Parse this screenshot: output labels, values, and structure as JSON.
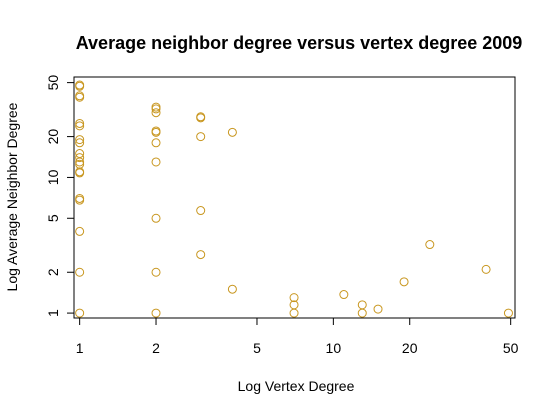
{
  "chart_data": {
    "type": "scatter",
    "title": "Average neighbor degree versus vertex degree 2009",
    "xlabel": "Log Vertex Degree",
    "ylabel": "Log Average Neighbor Degree",
    "x_scale": "log",
    "y_scale": "log",
    "xlim": [
      0.95,
      52
    ],
    "ylim": [
      0.92,
      55
    ],
    "x_ticks": [
      1,
      2,
      5,
      10,
      20,
      50
    ],
    "y_ticks": [
      1,
      2,
      5,
      10,
      20,
      50
    ],
    "grid": false,
    "marker": "open-circle",
    "point_color": "#c8961e",
    "points": [
      {
        "x": 1,
        "y": 48
      },
      {
        "x": 1,
        "y": 47
      },
      {
        "x": 1,
        "y": 40
      },
      {
        "x": 1,
        "y": 39
      },
      {
        "x": 1,
        "y": 25
      },
      {
        "x": 1,
        "y": 24
      },
      {
        "x": 1,
        "y": 19
      },
      {
        "x": 1,
        "y": 18
      },
      {
        "x": 1,
        "y": 15
      },
      {
        "x": 1,
        "y": 14
      },
      {
        "x": 1,
        "y": 13
      },
      {
        "x": 1,
        "y": 12.5
      },
      {
        "x": 1,
        "y": 11
      },
      {
        "x": 1,
        "y": 10.8
      },
      {
        "x": 1,
        "y": 7
      },
      {
        "x": 1,
        "y": 6.8
      },
      {
        "x": 1,
        "y": 4
      },
      {
        "x": 1,
        "y": 2
      },
      {
        "x": 1,
        "y": 1
      },
      {
        "x": 2,
        "y": 33
      },
      {
        "x": 2,
        "y": 32
      },
      {
        "x": 2,
        "y": 30
      },
      {
        "x": 2,
        "y": 22
      },
      {
        "x": 2,
        "y": 21.5
      },
      {
        "x": 2,
        "y": 18
      },
      {
        "x": 2,
        "y": 13
      },
      {
        "x": 2,
        "y": 5
      },
      {
        "x": 2,
        "y": 2
      },
      {
        "x": 2,
        "y": 1
      },
      {
        "x": 3,
        "y": 28
      },
      {
        "x": 3,
        "y": 27.5
      },
      {
        "x": 3,
        "y": 20
      },
      {
        "x": 3,
        "y": 5.7
      },
      {
        "x": 3,
        "y": 2.7
      },
      {
        "x": 4,
        "y": 21.5
      },
      {
        "x": 4,
        "y": 1.5
      },
      {
        "x": 7,
        "y": 1.3
      },
      {
        "x": 7,
        "y": 1.15
      },
      {
        "x": 7,
        "y": 1.0
      },
      {
        "x": 11,
        "y": 1.37
      },
      {
        "x": 13,
        "y": 1.15
      },
      {
        "x": 13,
        "y": 1.0
      },
      {
        "x": 15,
        "y": 1.07
      },
      {
        "x": 19,
        "y": 1.7
      },
      {
        "x": 24,
        "y": 3.2
      },
      {
        "x": 40,
        "y": 2.1
      },
      {
        "x": 49,
        "y": 1.0
      }
    ]
  }
}
